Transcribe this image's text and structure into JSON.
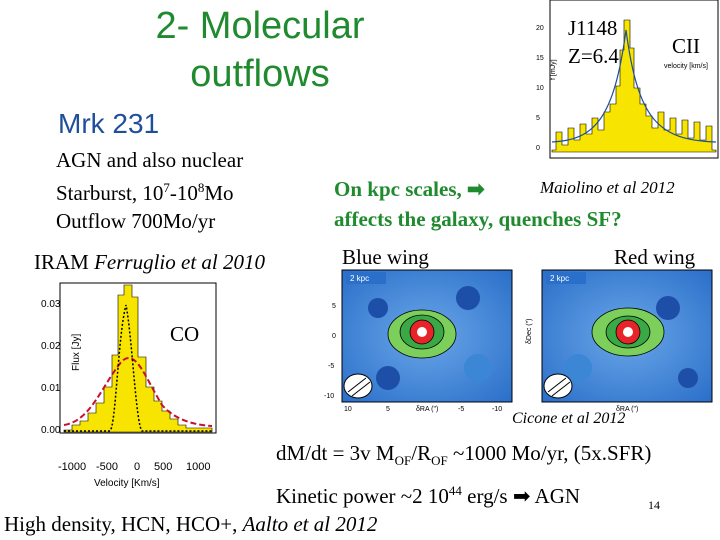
{
  "slide": {
    "title_line1": "2-  Molecular",
    "title_line2": "outflows",
    "mrk_label": "Mrk 231",
    "agn_line1": "AGN and also nuclear",
    "agn_line2_a": "Starburst, 10",
    "agn_line2_sup1": "7",
    "agn_line2_b": "-10",
    "agn_line2_sup2": "8",
    "agn_line2_c": "Mo",
    "agn_line3": "Outflow 700Mo/yr",
    "iram_a": "IRAM ",
    "iram_b": "Ferruglio et al 2010",
    "co_label": "CO",
    "j1148_label1": "J1148",
    "j1148_label2": "Z=6.4",
    "cii_label": "CII",
    "kpc_a": "On kpc scales, ",
    "kpc_line2": "affects the galaxy, quenches SF?",
    "maiolino": "Maiolino et al 2012",
    "blue_wing": "Blue wing",
    "red_wing": "Red wing",
    "cicone": "Cicone et al 2012",
    "dmdt_a": "d",
    "dmdt_b": "M/dt = 3v M",
    "dmdt_sub1": "OF",
    "dmdt_c": "/R",
    "dmdt_sub2": "OF",
    "dmdt_d": " ~1000 Mo/yr, (5x.SFR)",
    "kin_a": "Kinetic power ~2 10",
    "kin_sup": "44",
    "kin_b": " erg/s  ",
    "kin_c": " AGN",
    "high_a": "High density, HCN, HCO+, ",
    "high_b": "Aalto et al 2012",
    "page_number": "14"
  },
  "co_plot": {
    "ylabel": "Flux [Jy]",
    "xlabel": "Velocity [Km/s]",
    "yticks": [
      "0.03",
      "0.02",
      "0.01",
      "0.00"
    ],
    "xticks": [
      "-1000",
      "-500",
      "0",
      "500",
      "1000"
    ]
  },
  "cii_plot": {
    "ylabel": "f [mJy]",
    "xlabel": "velocity [km/s]",
    "yticks": [
      "20",
      "15",
      "10",
      "5",
      "0"
    ]
  },
  "maps": {
    "scale_label": "2 kpc",
    "ylabel": "δDec (\")",
    "xlabel": "δRA (\")",
    "ticks": [
      "5",
      "0",
      "-5",
      "-10"
    ],
    "xticks": [
      "10",
      "5",
      "0",
      "-5",
      "-10"
    ]
  }
}
